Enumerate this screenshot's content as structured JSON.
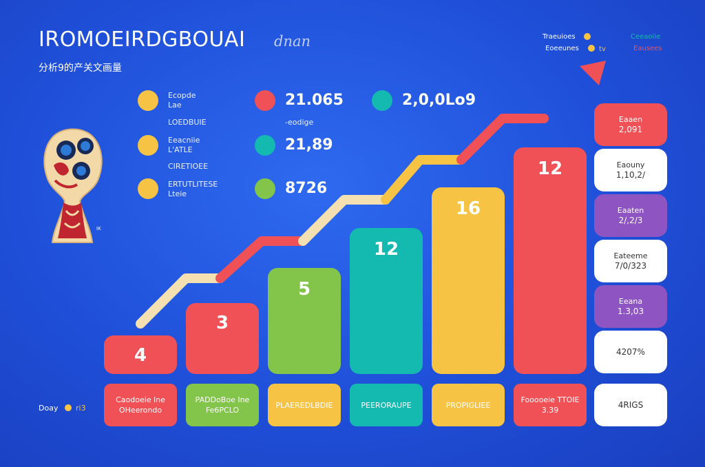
{
  "header": {
    "title": "IROMOEIRDGBOUAI",
    "title_suffix": "dnan",
    "subtitle": "分析9的产关文画量"
  },
  "kpis": [
    {
      "color": "#f6c344",
      "lines": [
        "Ecopde",
        "Lae"
      ],
      "note": "LOEDBUIE"
    },
    {
      "color": "#f6c344",
      "lines": [
        "Eeacniie",
        "L'ATLE"
      ],
      "note": "CIRETIOEE"
    },
    {
      "color": "#f6c344",
      "lines": [
        "ERTUTLITESE",
        "Lteie"
      ],
      "note": ""
    }
  ],
  "metrics": [
    {
      "color": "#f05156",
      "value": "21.065",
      "note": "-eodige"
    },
    {
      "color": "#14b9b0",
      "value": "21,89",
      "note": ""
    },
    {
      "color": "#83c44a",
      "value": "8726",
      "note": ""
    },
    {
      "color": "#14b9b0",
      "value": "2,0,0Lo9",
      "note": ""
    }
  ],
  "legend": {
    "items": [
      {
        "label": "Traeuioes",
        "color": "#f6c344"
      },
      {
        "label": "Eoeeunes",
        "color": "#f6c344"
      }
    ],
    "extra_mark": "tv",
    "right_items": [
      {
        "label": "Ceeaoiie",
        "color": "#14b9b0"
      },
      {
        "label": "Eausees",
        "color": "#f05156"
      }
    ]
  },
  "chart_data": {
    "type": "bar",
    "categories": [
      "Caodoeie lne OHeerondo",
      "PADDoBoe Ine Fe6PCLO",
      "PLAEREDLBDIE",
      "PEERORAUPE",
      "PROPIGLIEE",
      "Fooooeie TTOIE 3.39"
    ],
    "values": [
      4,
      3,
      5,
      12,
      16,
      12
    ],
    "bar_colors": [
      "#f05156",
      "#f05156",
      "#83c44a",
      "#14b9b0",
      "#f6c344",
      "#f05156"
    ],
    "trend": {
      "segment_colors": [
        "#f4e0b0",
        "#f05156",
        "#f4e0b0",
        "#f6c344",
        "#f05156"
      ]
    }
  },
  "side_panel": [
    {
      "label": "Eaaen",
      "value": "2,091",
      "bg": "#f05156",
      "fg": "#ffffff"
    },
    {
      "label": "Eaouny",
      "value": "1,10,2/",
      "bg": "#ffffff",
      "fg": "#333333"
    },
    {
      "label": "Eaaten",
      "value": "2/,2/3",
      "bg": "#8e55c2",
      "fg": "#ffffff"
    },
    {
      "label": "Eateeme",
      "value": "7/0/323",
      "bg": "#ffffff",
      "fg": "#333333"
    },
    {
      "label": "Eeana",
      "value": "1.3,03",
      "bg": "#8e55c2",
      "fg": "#ffffff"
    },
    {
      "label": "",
      "value": "4207%",
      "bg": "#ffffff",
      "fg": "#333333"
    },
    {
      "label": "",
      "value": "4RIGS",
      "bg": "#ffffff",
      "fg": "#333333"
    }
  ],
  "footer": {
    "left": "Doay",
    "right": "ri3"
  },
  "trophy_mark": "IK"
}
